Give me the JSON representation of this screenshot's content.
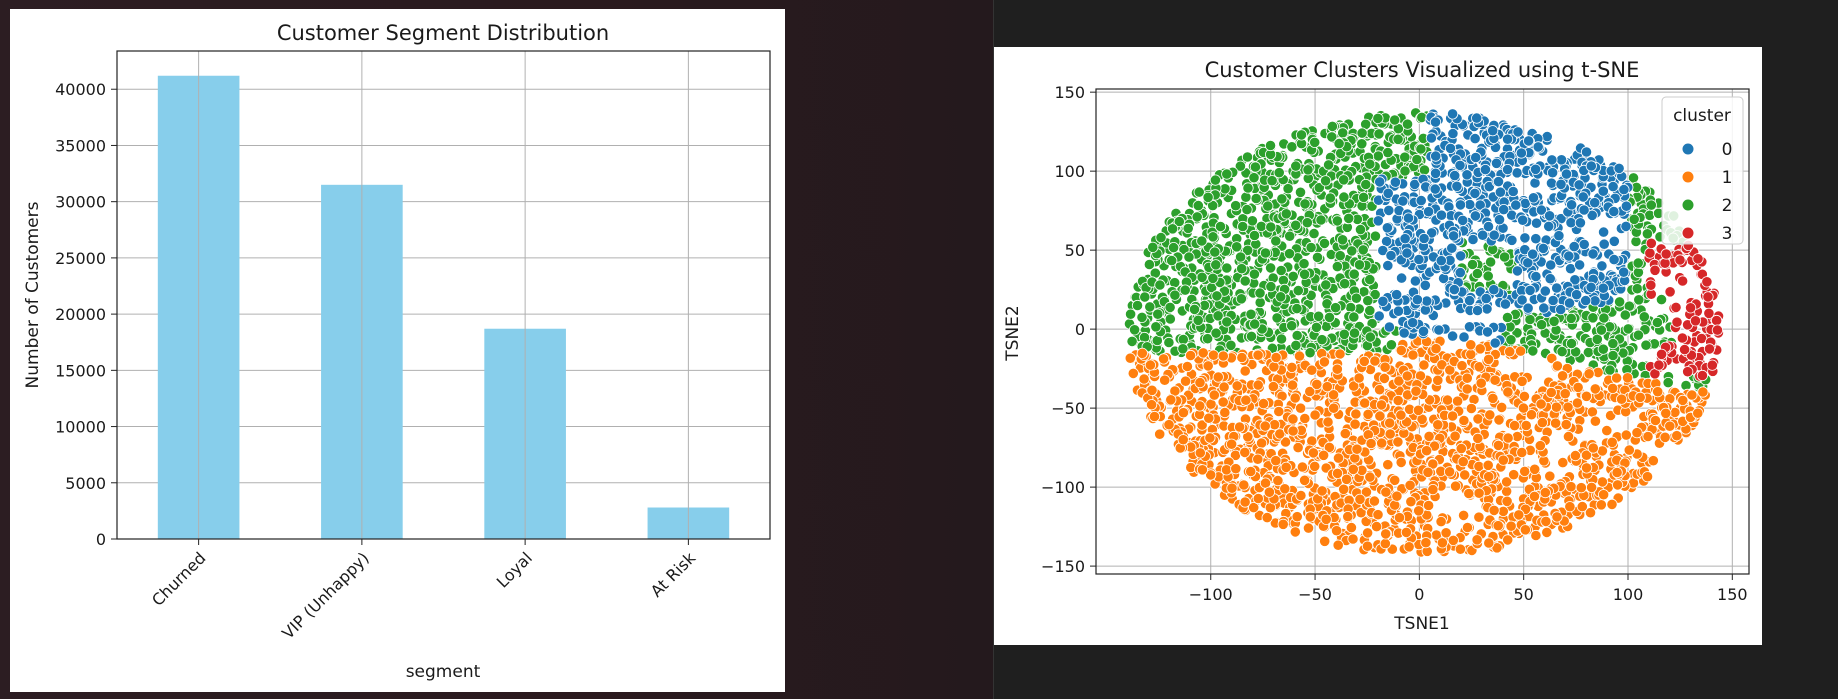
{
  "chart_data": [
    {
      "type": "bar",
      "title": "Customer Segment Distribution",
      "xlabel": "segment",
      "ylabel": "Number of Customers",
      "categories": [
        "Churned",
        "VIP (Unhappy)",
        "Loyal",
        "At Risk"
      ],
      "values": [
        41200,
        31500,
        18700,
        2800
      ],
      "ylim": [
        0,
        43400
      ],
      "yticks": [
        0,
        5000,
        10000,
        15000,
        20000,
        25000,
        30000,
        35000,
        40000
      ],
      "bar_color": "#87ceeb",
      "grid": true
    },
    {
      "type": "scatter",
      "title": "Customer Clusters Visualized using t-SNE",
      "xlabel": "TSNE1",
      "ylabel": "TSNE2",
      "xlim": [
        -155,
        158
      ],
      "ylim": [
        -155,
        152
      ],
      "xticks": [
        -100,
        -50,
        0,
        50,
        100,
        150
      ],
      "xtick_labels": [
        "−100",
        "−50",
        "0",
        "50",
        "100",
        "150"
      ],
      "yticks": [
        -150,
        -100,
        -50,
        0,
        50,
        100,
        150
      ],
      "ytick_labels": [
        "−150",
        "−100",
        "−50",
        "0",
        "50",
        "100",
        "150"
      ],
      "grid": true,
      "legend": {
        "title": "cluster",
        "position": "top-right"
      },
      "series": [
        {
          "name": "0",
          "color": "#1f77b4"
        },
        {
          "name": "1",
          "color": "#ff7f0e"
        },
        {
          "name": "2",
          "color": "#2ca02c"
        },
        {
          "name": "3",
          "color": "#d62728"
        }
      ]
    }
  ]
}
